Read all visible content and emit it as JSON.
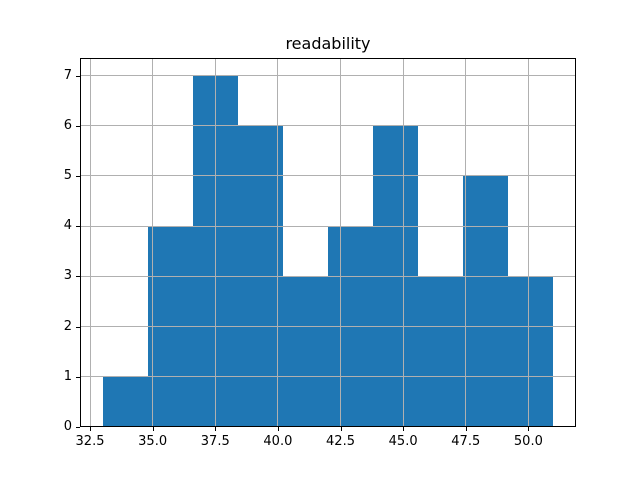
{
  "figure": {
    "title": "readability"
  },
  "chart_data": {
    "type": "bar",
    "subtype": "histogram",
    "title": "readability",
    "xlabel": "",
    "ylabel": "",
    "bin_edges": [
      33.0,
      34.8,
      36.6,
      38.4,
      40.2,
      42.0,
      43.8,
      45.6,
      47.4,
      49.2,
      51.0
    ],
    "values": [
      1,
      4,
      7,
      6,
      3,
      4,
      6,
      3,
      5,
      3
    ],
    "xlim": [
      32.1,
      51.9
    ],
    "ylim": [
      0,
      7.35
    ],
    "x_ticks": [
      32.5,
      35.0,
      37.5,
      40.0,
      42.5,
      45.0,
      47.5,
      50.0
    ],
    "x_tick_labels": [
      "32.5",
      "35.0",
      "37.5",
      "40.0",
      "42.5",
      "45.0",
      "47.5",
      "50.0"
    ],
    "y_ticks": [
      0,
      1,
      2,
      3,
      4,
      5,
      6,
      7
    ],
    "y_tick_labels": [
      "0",
      "1",
      "2",
      "3",
      "4",
      "5",
      "6",
      "7"
    ],
    "grid": true,
    "legend": null,
    "colors": {
      "bar": "#1f77b4",
      "grid": "#b0b0b0",
      "spine": "#000000",
      "text": "#000000"
    }
  }
}
